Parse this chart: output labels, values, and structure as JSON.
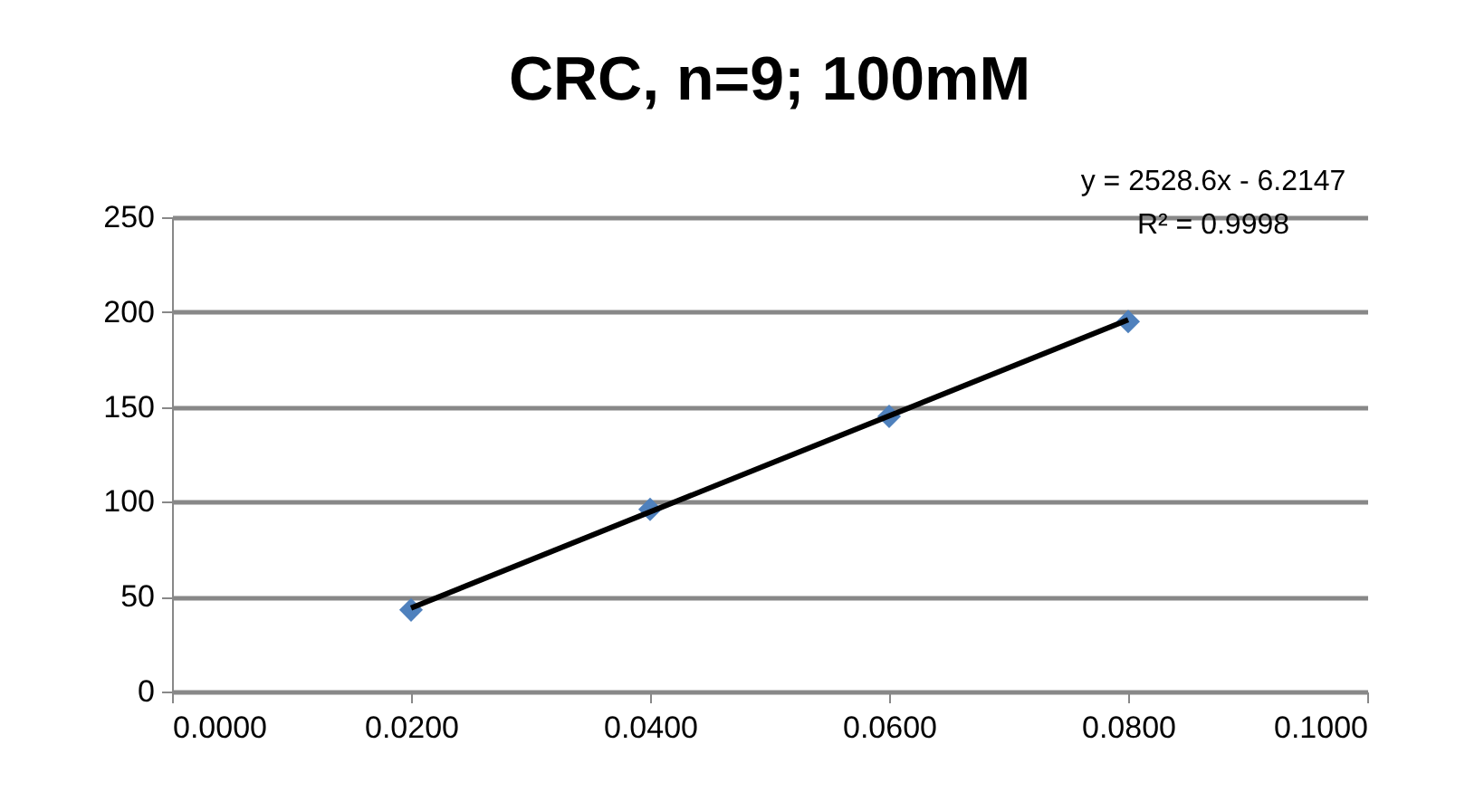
{
  "chart_data": {
    "type": "scatter",
    "title": "CRC, n=9; 100mM",
    "x": [
      0.02,
      0.04,
      0.06,
      0.08
    ],
    "series": [
      {
        "color": "#4f81bd",
        "values": [
          43,
          96,
          145,
          195
        ]
      },
      {
        "type": "line",
        "color": "#000000",
        "marker": "none",
        "x": [
          0.02,
          0.08
        ],
        "values": [
          44,
          196
        ]
      }
    ],
    "annotations": [
      "y = 2528.6x - 6.2147",
      "R² = 0.9998"
    ],
    "xlim": [
      0,
      0.1
    ],
    "xticks": [
      {
        "value": 0,
        "label": "0.0000"
      },
      {
        "value": 0.02,
        "label": "0.0200"
      },
      {
        "value": 0.04,
        "label": "0.0400"
      },
      {
        "value": 0.06,
        "label": "0.0600"
      },
      {
        "value": 0.08,
        "label": "0.0800"
      },
      {
        "value": 0.1,
        "label": "0.1000"
      }
    ],
    "ylim": [
      0,
      250
    ],
    "yticks": [
      0,
      50,
      100,
      150,
      200,
      250
    ],
    "grid": "y",
    "marker": "diamond",
    "line_style": "solid"
  }
}
